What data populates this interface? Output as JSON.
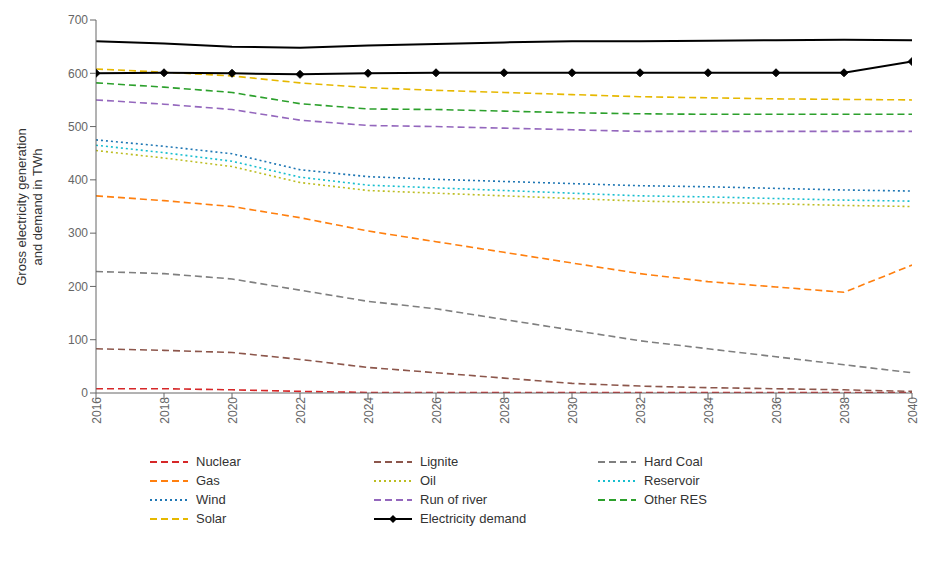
{
  "chart_data": {
    "type": "line",
    "y_label": "Gross electricity generation\nand demand in TWh",
    "x": [
      2016,
      2018,
      2020,
      2022,
      2024,
      2026,
      2028,
      2030,
      2032,
      2034,
      2036,
      2038,
      2040
    ],
    "xlim": [
      2016,
      2040
    ],
    "xticks": [
      2016,
      2018,
      2020,
      2022,
      2024,
      2026,
      2028,
      2030,
      2032,
      2034,
      2036,
      2038,
      2040
    ],
    "ylim": [
      0,
      700
    ],
    "yticks": [
      0,
      100,
      200,
      300,
      400,
      500,
      600,
      700
    ],
    "grid": false,
    "legend": "bottom",
    "series": [
      {
        "name": "Nuclear",
        "color": "#d62728",
        "line_style": "dashed",
        "values": [
          8,
          8,
          6,
          3,
          1,
          1,
          1,
          1,
          1,
          1,
          1,
          1,
          1
        ]
      },
      {
        "name": "Lignite",
        "color": "#8c564b",
        "line_style": "dashed",
        "values": [
          83,
          80,
          76,
          63,
          48,
          38,
          28,
          18,
          13,
          10,
          8,
          6,
          3
        ]
      },
      {
        "name": "Hard Coal",
        "color": "#7f7f7f",
        "line_style": "dashed",
        "values": [
          228,
          224,
          214,
          193,
          172,
          158,
          138,
          118,
          98,
          83,
          68,
          53,
          38
        ]
      },
      {
        "name": "Gas",
        "color": "#ff7f0e",
        "line_style": "dashed",
        "values": [
          370,
          361,
          350,
          329,
          304,
          284,
          264,
          244,
          224,
          209,
          199,
          189,
          240
        ]
      },
      {
        "name": "Oil",
        "color": "#bcbd22",
        "line_style": "dotted",
        "values": [
          455,
          441,
          425,
          395,
          380,
          375,
          370,
          365,
          360,
          358,
          355,
          352,
          350
        ]
      },
      {
        "name": "Reservoir",
        "color": "#17becf",
        "line_style": "dotted",
        "values": [
          465,
          451,
          435,
          405,
          390,
          385,
          380,
          375,
          370,
          368,
          365,
          362,
          360
        ]
      },
      {
        "name": "Wind",
        "color": "#1f77b4",
        "line_style": "dotted",
        "values": [
          475,
          463,
          449,
          419,
          406,
          401,
          397,
          393,
          389,
          387,
          384,
          381,
          379
        ]
      },
      {
        "name": "Run of river",
        "color": "#9467bd",
        "line_style": "dashed",
        "values": [
          550,
          542,
          532,
          512,
          502,
          500,
          497,
          494,
          491,
          491,
          491,
          491,
          491
        ]
      },
      {
        "name": "Other RES",
        "color": "#2ca02c",
        "line_style": "dashed",
        "values": [
          582,
          574,
          564,
          543,
          533,
          532,
          529,
          526,
          524,
          523,
          523,
          523,
          523
        ]
      },
      {
        "name": "Solar",
        "color": "#e6b800",
        "line_style": "dashed",
        "values": [
          608,
          602,
          595,
          582,
          573,
          568,
          564,
          560,
          556,
          554,
          552,
          551,
          550
        ]
      },
      {
        "name": "Electricity demand",
        "color": "#000000",
        "line_style": "solid",
        "marker": "diamond",
        "values": [
          600,
          601,
          600,
          598,
          600,
          601,
          601,
          601,
          601,
          601,
          601,
          601,
          622
        ]
      },
      {
        "color": "#000000",
        "line_style": "solid",
        "values": [
          660,
          656,
          650,
          648,
          652,
          655,
          658,
          660,
          660,
          661,
          662,
          663,
          662
        ]
      }
    ]
  }
}
